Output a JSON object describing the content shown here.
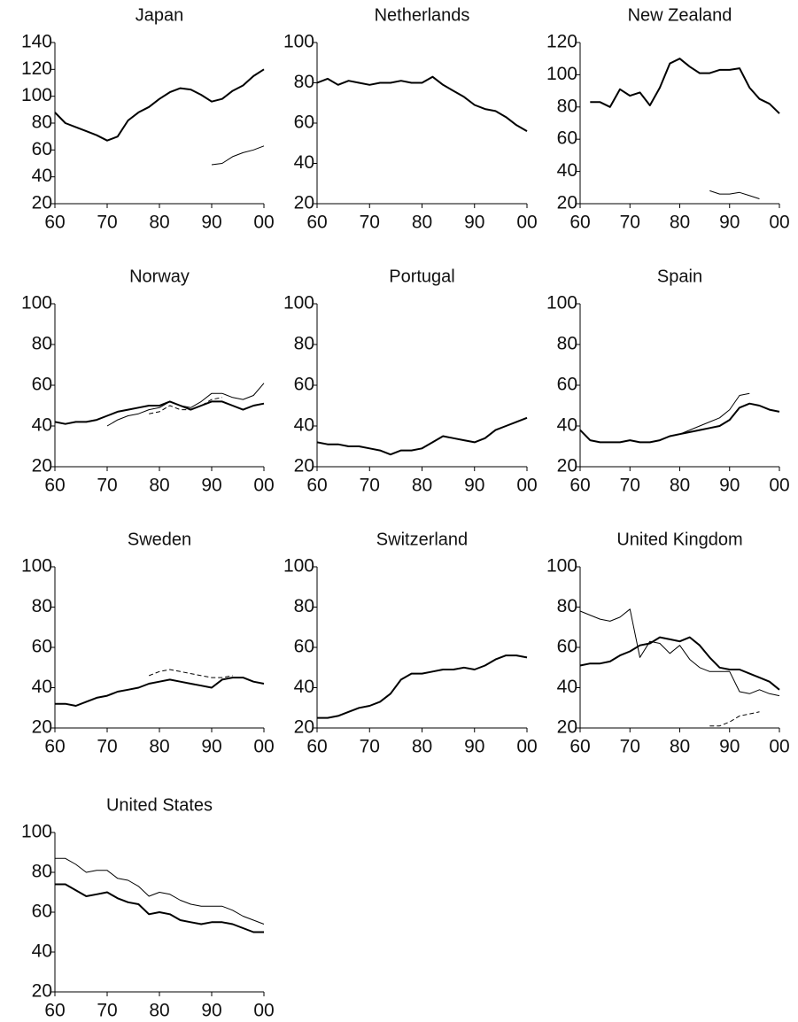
{
  "chart_data": [
    {
      "type": "line",
      "title": "Japan",
      "x": [
        60,
        62,
        64,
        66,
        68,
        70,
        72,
        74,
        76,
        78,
        80,
        82,
        84,
        86,
        88,
        90,
        92,
        94,
        96,
        98,
        100
      ],
      "xlim": [
        60,
        100
      ],
      "xticks": [
        60,
        70,
        80,
        90,
        {
          "value": 100,
          "label": "00"
        }
      ],
      "ylim": [
        20,
        140
      ],
      "yticks": [
        20,
        40,
        60,
        80,
        100,
        120,
        140
      ],
      "series": [
        {
          "color": "#000",
          "width": 2,
          "values": [
            88,
            80,
            77,
            74,
            71,
            67,
            70,
            82,
            88,
            92,
            98,
            103,
            106,
            105,
            101,
            96,
            98,
            104,
            108,
            115,
            120
          ]
        },
        {
          "color": "#000",
          "width": 1,
          "values": [
            null,
            null,
            null,
            null,
            null,
            null,
            null,
            null,
            null,
            null,
            null,
            null,
            null,
            null,
            null,
            49,
            50,
            55,
            58,
            60,
            63
          ]
        }
      ]
    },
    {
      "type": "line",
      "title": "Netherlands",
      "x": [
        60,
        62,
        64,
        66,
        68,
        70,
        72,
        74,
        76,
        78,
        80,
        82,
        84,
        86,
        88,
        90,
        92,
        94,
        96,
        98,
        100
      ],
      "xlim": [
        60,
        100
      ],
      "xticks": [
        60,
        70,
        80,
        90,
        {
          "value": 100,
          "label": "00"
        }
      ],
      "ylim": [
        20,
        100
      ],
      "yticks": [
        20,
        40,
        60,
        80,
        100
      ],
      "series": [
        {
          "color": "#000",
          "width": 2,
          "values": [
            80,
            82,
            79,
            81,
            80,
            79,
            80,
            80,
            81,
            80,
            80,
            83,
            79,
            76,
            73,
            69,
            67,
            66,
            63,
            59,
            56
          ]
        }
      ]
    },
    {
      "type": "line",
      "title": "New Zealand",
      "x": [
        60,
        62,
        64,
        66,
        68,
        70,
        72,
        74,
        76,
        78,
        80,
        82,
        84,
        86,
        88,
        90,
        92,
        94,
        96,
        98,
        100
      ],
      "xlim": [
        60,
        100
      ],
      "xticks": [
        60,
        70,
        80,
        90,
        {
          "value": 100,
          "label": "00"
        }
      ],
      "ylim": [
        20,
        120
      ],
      "yticks": [
        20,
        40,
        60,
        80,
        100,
        120
      ],
      "series": [
        {
          "color": "#000",
          "width": 2,
          "values": [
            null,
            83,
            83,
            80,
            91,
            87,
            89,
            81,
            92,
            107,
            110,
            105,
            101,
            101,
            103,
            103,
            104,
            92,
            85,
            82,
            76
          ]
        },
        {
          "color": "#000",
          "width": 1,
          "values": [
            null,
            null,
            null,
            null,
            null,
            null,
            null,
            null,
            null,
            null,
            null,
            null,
            null,
            28,
            26,
            26,
            27,
            25,
            23,
            null,
            null
          ]
        }
      ]
    },
    {
      "type": "line",
      "title": "Norway",
      "x": [
        60,
        62,
        64,
        66,
        68,
        70,
        72,
        74,
        76,
        78,
        80,
        82,
        84,
        86,
        88,
        90,
        92,
        94,
        96,
        98,
        100
      ],
      "xlim": [
        60,
        100
      ],
      "xticks": [
        60,
        70,
        80,
        90,
        {
          "value": 100,
          "label": "00"
        }
      ],
      "ylim": [
        20,
        100
      ],
      "yticks": [
        20,
        40,
        60,
        80,
        100
      ],
      "series": [
        {
          "color": "#000",
          "width": 2,
          "values": [
            42,
            41,
            42,
            42,
            43,
            45,
            47,
            48,
            49,
            50,
            50,
            52,
            50,
            48,
            50,
            52,
            52,
            50,
            48,
            50,
            51
          ]
        },
        {
          "color": "#000",
          "width": 1,
          "values": [
            null,
            null,
            null,
            null,
            null,
            40,
            43,
            45,
            46,
            48,
            49,
            52,
            50,
            49,
            52,
            56,
            56,
            54,
            53,
            55,
            61
          ]
        },
        {
          "color": "#000",
          "width": 1,
          "dash": true,
          "values": [
            null,
            null,
            null,
            null,
            null,
            null,
            null,
            null,
            null,
            46,
            47,
            50,
            48,
            48,
            50,
            53,
            54,
            null,
            null,
            null,
            null
          ]
        }
      ]
    },
    {
      "type": "line",
      "title": "Portugal",
      "x": [
        60,
        62,
        64,
        66,
        68,
        70,
        72,
        74,
        76,
        78,
        80,
        82,
        84,
        86,
        88,
        90,
        92,
        94,
        96,
        98,
        100
      ],
      "xlim": [
        60,
        100
      ],
      "xticks": [
        60,
        70,
        80,
        90,
        {
          "value": 100,
          "label": "00"
        }
      ],
      "ylim": [
        20,
        100
      ],
      "yticks": [
        20,
        40,
        60,
        80,
        100
      ],
      "series": [
        {
          "color": "#000",
          "width": 2,
          "values": [
            32,
            31,
            31,
            30,
            30,
            29,
            28,
            26,
            28,
            28,
            29,
            32,
            35,
            34,
            33,
            32,
            34,
            38,
            40,
            42,
            44
          ]
        }
      ]
    },
    {
      "type": "line",
      "title": "Spain",
      "x": [
        60,
        62,
        64,
        66,
        68,
        70,
        72,
        74,
        76,
        78,
        80,
        82,
        84,
        86,
        88,
        90,
        92,
        94,
        96,
        98,
        100
      ],
      "xlim": [
        60,
        100
      ],
      "xticks": [
        60,
        70,
        80,
        90,
        {
          "value": 100,
          "label": "00"
        }
      ],
      "ylim": [
        20,
        100
      ],
      "yticks": [
        20,
        40,
        60,
        80,
        100
      ],
      "series": [
        {
          "color": "#000",
          "width": 2,
          "values": [
            38,
            33,
            32,
            32,
            32,
            33,
            32,
            32,
            33,
            35,
            36,
            37,
            38,
            39,
            40,
            43,
            49,
            51,
            50,
            48,
            47
          ]
        },
        {
          "color": "#000",
          "width": 1,
          "values": [
            null,
            null,
            null,
            null,
            null,
            null,
            null,
            null,
            null,
            null,
            36,
            38,
            40,
            42,
            44,
            48,
            55,
            56,
            null,
            null,
            null
          ]
        }
      ]
    },
    {
      "type": "line",
      "title": "Sweden",
      "x": [
        60,
        62,
        64,
        66,
        68,
        70,
        72,
        74,
        76,
        78,
        80,
        82,
        84,
        86,
        88,
        90,
        92,
        94,
        96,
        98,
        100
      ],
      "xlim": [
        60,
        100
      ],
      "xticks": [
        60,
        70,
        80,
        90,
        {
          "value": 100,
          "label": "00"
        }
      ],
      "ylim": [
        20,
        100
      ],
      "yticks": [
        20,
        40,
        60,
        80,
        100
      ],
      "series": [
        {
          "color": "#000",
          "width": 2,
          "values": [
            32,
            32,
            31,
            33,
            35,
            36,
            38,
            39,
            40,
            42,
            43,
            44,
            43,
            42,
            41,
            40,
            44,
            45,
            45,
            43,
            42
          ]
        },
        {
          "color": "#000",
          "width": 1,
          "dash": true,
          "values": [
            null,
            null,
            null,
            null,
            null,
            null,
            null,
            null,
            null,
            46,
            48,
            49,
            48,
            47,
            46,
            45,
            45,
            46,
            null,
            null,
            null
          ]
        }
      ]
    },
    {
      "type": "line",
      "title": "Switzerland",
      "x": [
        60,
        62,
        64,
        66,
        68,
        70,
        72,
        74,
        76,
        78,
        80,
        82,
        84,
        86,
        88,
        90,
        92,
        94,
        96,
        98,
        100
      ],
      "xlim": [
        60,
        100
      ],
      "xticks": [
        60,
        70,
        80,
        90,
        {
          "value": 100,
          "label": "00"
        }
      ],
      "ylim": [
        20,
        100
      ],
      "yticks": [
        20,
        40,
        60,
        80,
        100
      ],
      "series": [
        {
          "color": "#000",
          "width": 2,
          "values": [
            25,
            25,
            26,
            28,
            30,
            31,
            33,
            37,
            44,
            47,
            47,
            48,
            49,
            49,
            50,
            49,
            51,
            54,
            56,
            56,
            55
          ]
        }
      ]
    },
    {
      "type": "line",
      "title": "United Kingdom",
      "x": [
        60,
        62,
        64,
        66,
        68,
        70,
        72,
        74,
        76,
        78,
        80,
        82,
        84,
        86,
        88,
        90,
        92,
        94,
        96,
        98,
        100
      ],
      "xlim": [
        60,
        100
      ],
      "xticks": [
        60,
        70,
        80,
        90,
        {
          "value": 100,
          "label": "00"
        }
      ],
      "ylim": [
        20,
        100
      ],
      "yticks": [
        20,
        40,
        60,
        80,
        100
      ],
      "series": [
        {
          "color": "#000",
          "width": 2,
          "values": [
            51,
            52,
            52,
            53,
            56,
            58,
            61,
            62,
            65,
            64,
            63,
            65,
            61,
            55,
            50,
            49,
            49,
            47,
            45,
            43,
            39
          ]
        },
        {
          "color": "#000",
          "width": 1,
          "values": [
            78,
            76,
            74,
            73,
            75,
            79,
            55,
            63,
            62,
            57,
            61,
            54,
            50,
            48,
            48,
            48,
            38,
            37,
            39,
            37,
            36
          ]
        },
        {
          "color": "#000",
          "width": 1,
          "dash": true,
          "values": [
            null,
            null,
            null,
            null,
            null,
            null,
            null,
            null,
            null,
            null,
            null,
            null,
            null,
            21,
            21,
            23,
            26,
            27,
            28,
            null,
            null
          ]
        }
      ]
    },
    {
      "type": "line",
      "title": "United States",
      "x": [
        60,
        62,
        64,
        66,
        68,
        70,
        72,
        74,
        76,
        78,
        80,
        82,
        84,
        86,
        88,
        90,
        92,
        94,
        96,
        98,
        100
      ],
      "xlim": [
        60,
        100
      ],
      "xticks": [
        60,
        70,
        80,
        90,
        {
          "value": 100,
          "label": "00"
        }
      ],
      "ylim": [
        20,
        100
      ],
      "yticks": [
        20,
        40,
        60,
        80,
        100
      ],
      "series": [
        {
          "color": "#000",
          "width": 2,
          "values": [
            74,
            74,
            71,
            68,
            69,
            70,
            67,
            65,
            64,
            59,
            60,
            59,
            56,
            55,
            54,
            55,
            55,
            54,
            52,
            50,
            50
          ]
        },
        {
          "color": "#000",
          "width": 1,
          "values": [
            87,
            87,
            84,
            80,
            81,
            81,
            77,
            76,
            73,
            68,
            70,
            69,
            66,
            64,
            63,
            63,
            63,
            61,
            58,
            56,
            54
          ]
        }
      ]
    }
  ]
}
